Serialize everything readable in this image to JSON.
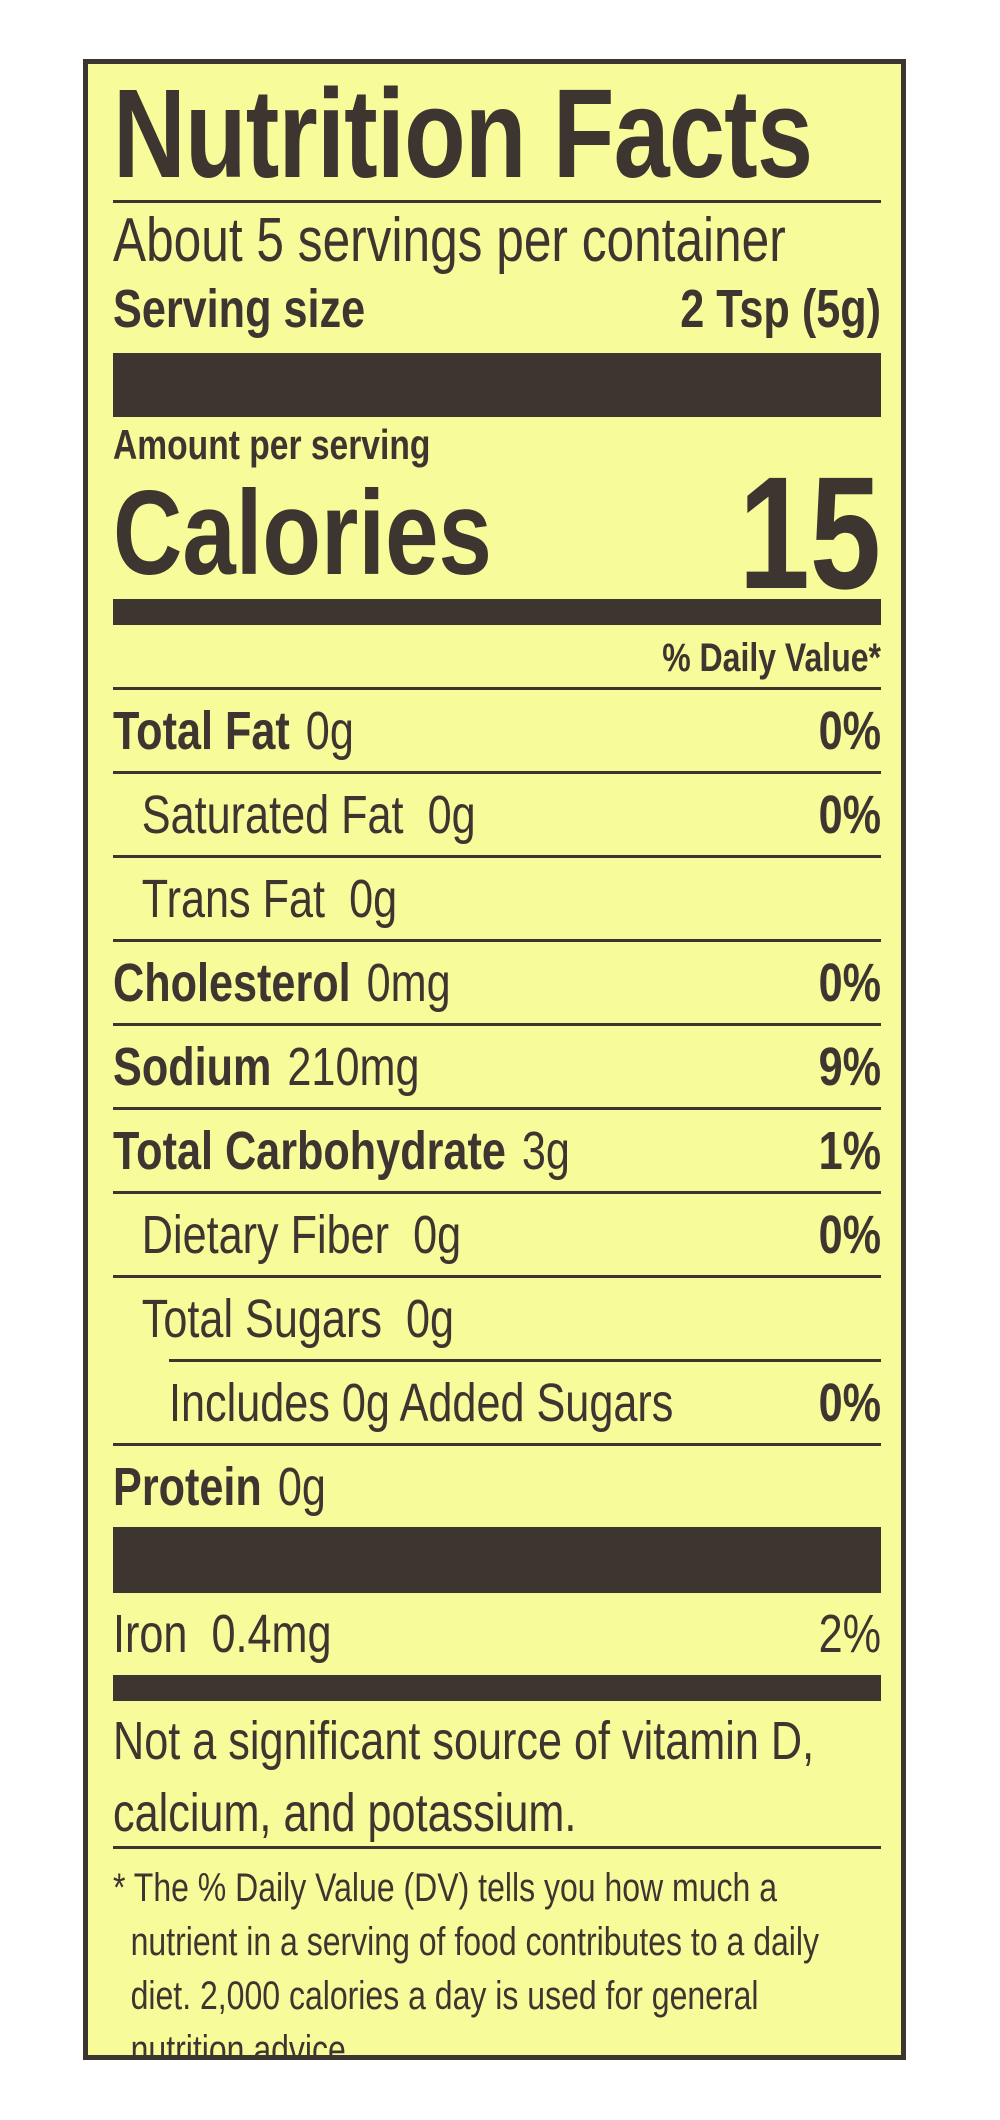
{
  "header": {
    "title": "Nutrition Facts",
    "servings": "About 5 servings per container",
    "serving_size_label": "Serving size",
    "serving_size_value": "2 Tsp (5g)"
  },
  "calories": {
    "amount_label": "Amount per serving",
    "label": "Calories",
    "value": "15"
  },
  "daily_value_header": "% Daily Value*",
  "nutrients": [
    {
      "name": "Total Fat",
      "amount": "0g",
      "dv": "0%"
    },
    {
      "name": "Saturated Fat",
      "amount": "0g",
      "dv": "0%"
    },
    {
      "name": "Trans Fat",
      "amount": "0g"
    },
    {
      "name": "Cholesterol",
      "amount": "0mg",
      "dv": "0%"
    },
    {
      "name": "Sodium",
      "amount": "210mg",
      "dv": "9%"
    },
    {
      "name": "Total Carbohydrate",
      "amount": "3g",
      "dv": "1%"
    },
    {
      "name": "Dietary Fiber",
      "amount": "0g",
      "dv": "0%"
    },
    {
      "name": "Total Sugars",
      "amount": "0g"
    },
    {
      "name": "Includes 0g Added Sugars",
      "dv": "0%"
    },
    {
      "name": "Protein",
      "amount": "0g"
    }
  ],
  "vitamins": [
    {
      "name": "Iron",
      "amount": "0.4mg",
      "dv": "2%"
    }
  ],
  "note": "Not a significant source of vitamin D, calcium, and potassium.",
  "footnote": "* The % Daily Value (DV) tells you how much a nutrient in a serving of food contributes to a daily diet. 2,000 calories a day is used for general nutrition advice."
}
